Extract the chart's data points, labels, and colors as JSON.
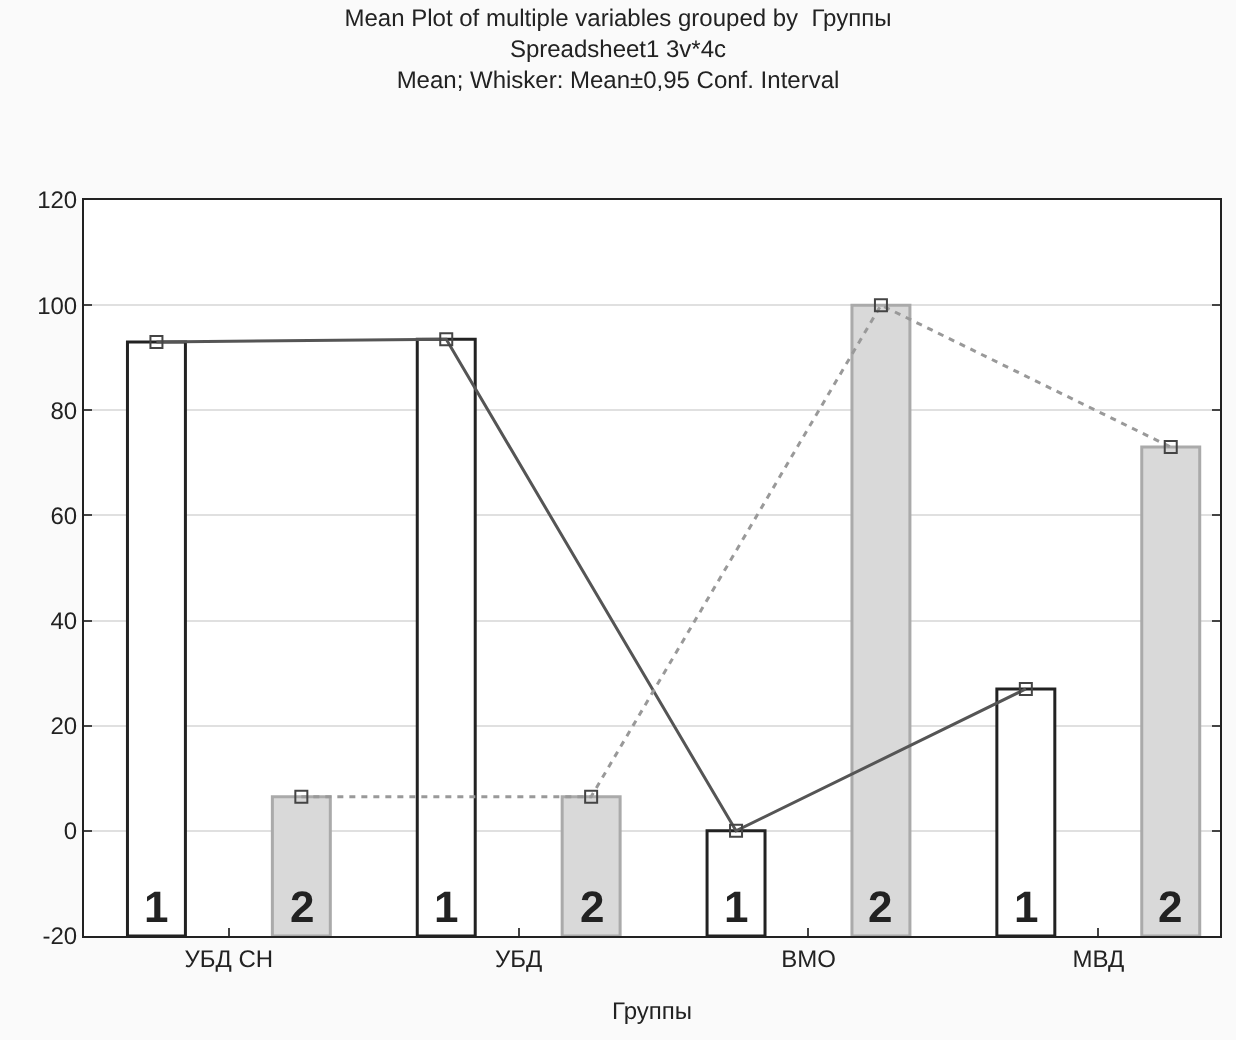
{
  "chart_data": {
    "type": "bar",
    "title": "Mean Plot of multiple variables grouped by  Группы",
    "subtitle": "Spreadsheet1 3v*4c\nMean; Whisker: Mean±0,95 Conf. Interval",
    "xlabel": "Группы",
    "categories": [
      "УБД СН",
      "УБД",
      "ВМО",
      "МВД"
    ],
    "series": [
      {
        "name": "1",
        "color": "#ffffff",
        "base": [
          -20,
          -20,
          -20,
          -20
        ],
        "values": [
          113,
          113.5,
          20,
          47
        ]
      },
      {
        "name": "2",
        "color": "#d9d9d9",
        "base": [
          -20,
          -20,
          -20,
          -20
        ],
        "values": [
          26.5,
          26.5,
          120,
          93
        ]
      },
      {
        "type": "line",
        "color": "#555555",
        "line_style": "solid",
        "marker": "square",
        "values": [
          93,
          93.5,
          0,
          27
        ]
      },
      {
        "type": "line",
        "color": "#999999",
        "line_style": "dotted",
        "marker": "square",
        "values": [
          6.5,
          6.5,
          100,
          73
        ]
      }
    ],
    "ylim": [
      -20,
      120
    ],
    "yticks": [
      -20,
      0,
      20,
      40,
      60,
      80,
      100,
      120
    ],
    "grid": "y"
  }
}
